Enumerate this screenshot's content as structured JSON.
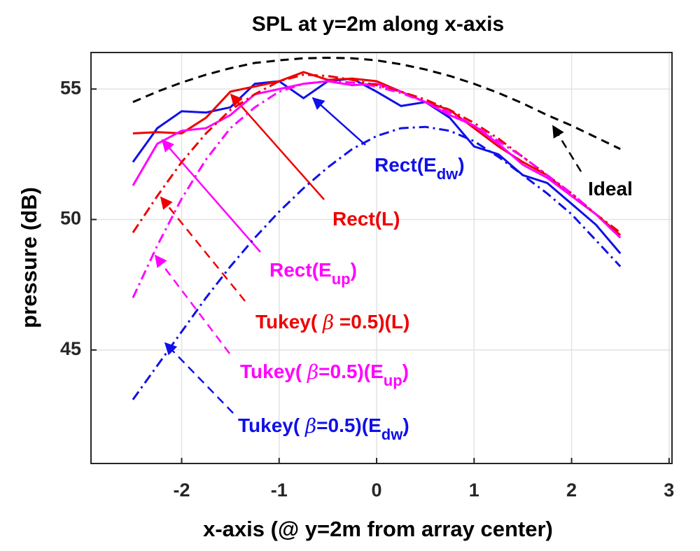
{
  "chart_data": {
    "type": "line",
    "title": "SPL at y=2m along x-axis",
    "xlabel": "x-axis (@ y=2m from array center)",
    "ylabel": "pressure (dB)",
    "x": [
      -2.5,
      -2.25,
      -2.0,
      -1.75,
      -1.5,
      -1.25,
      -1.0,
      -0.75,
      -0.5,
      -0.25,
      0,
      0.25,
      0.5,
      0.75,
      1.0,
      1.25,
      1.5,
      1.75,
      2.0,
      2.25,
      2.5
    ],
    "xlim": [
      -2.93,
      3.03
    ],
    "xticks": [
      -2,
      -1,
      0,
      1,
      2,
      3
    ],
    "ylim": [
      40.65,
      56.4
    ],
    "yticks": [
      45,
      50,
      55
    ],
    "grid": true,
    "series": [
      {
        "name": [
          "Ideal"
        ],
        "color": "#000000",
        "style": "dashed",
        "values": [
          54.5,
          54.9,
          55.25,
          55.55,
          55.8,
          56.0,
          56.1,
          56.18,
          56.2,
          56.18,
          56.1,
          55.95,
          55.75,
          55.5,
          55.2,
          54.85,
          54.45,
          54.0,
          53.6,
          53.15,
          52.7
        ]
      },
      {
        "name": [
          "Rect(E",
          "dw",
          ")"
        ],
        "color": "#1010e8",
        "style": "solid",
        "values": [
          52.2,
          53.5,
          54.15,
          54.1,
          54.3,
          55.2,
          55.3,
          54.65,
          55.3,
          55.4,
          54.9,
          54.35,
          54.5,
          53.9,
          52.8,
          52.5,
          51.7,
          51.4,
          50.6,
          49.8,
          48.7
        ]
      },
      {
        "name": [
          "Rect(L)"
        ],
        "color": "#ee0000",
        "style": "solid",
        "values": [
          53.3,
          53.35,
          53.3,
          53.9,
          54.9,
          55.1,
          55.3,
          55.65,
          55.35,
          55.4,
          55.3,
          54.9,
          54.5,
          54.2,
          53.5,
          52.8,
          52.2,
          51.7,
          50.9,
          50.2,
          49.4
        ]
      },
      {
        "name": [
          "Rect(E",
          "up",
          ")"
        ],
        "color": "#ff00ff",
        "style": "solid",
        "values": [
          51.3,
          52.9,
          53.4,
          53.5,
          54.0,
          54.8,
          55.0,
          55.2,
          55.3,
          55.15,
          55.2,
          54.9,
          54.5,
          54.0,
          53.6,
          52.9,
          52.1,
          51.6,
          50.9,
          50.2,
          49.3
        ]
      },
      {
        "name": [
          "Tukey( ",
          "β",
          " =0.5)(L)"
        ],
        "color": "#ee0000",
        "style": "dashdot",
        "values": [
          49.5,
          50.9,
          52.2,
          53.3,
          54.2,
          54.8,
          55.3,
          55.55,
          55.5,
          55.35,
          55.15,
          54.9,
          54.6,
          54.2,
          53.7,
          53.1,
          52.4,
          51.7,
          51.0,
          50.2,
          49.5
        ]
      },
      {
        "name": [
          "Tukey( ",
          "β",
          "=0.5)(E",
          "up",
          ")"
        ],
        "color": "#ff00ff",
        "style": "dashdot",
        "values": [
          47.0,
          49.0,
          50.8,
          52.3,
          53.5,
          54.3,
          54.9,
          55.2,
          55.3,
          55.25,
          55.1,
          54.85,
          54.5,
          54.1,
          53.6,
          53.0,
          52.4,
          51.7,
          51.0,
          50.2,
          49.3
        ]
      },
      {
        "name": [
          "Tukey( ",
          "β",
          "=0.5)(E",
          "dw",
          ")"
        ],
        "color": "#1010e8",
        "style": "dashdot",
        "values": [
          43.1,
          44.4,
          45.7,
          47.0,
          48.2,
          49.3,
          50.3,
          51.2,
          52.0,
          52.7,
          53.2,
          53.5,
          53.55,
          53.4,
          53.0,
          52.4,
          51.7,
          51.0,
          50.2,
          49.2,
          48.2
        ]
      }
    ]
  }
}
